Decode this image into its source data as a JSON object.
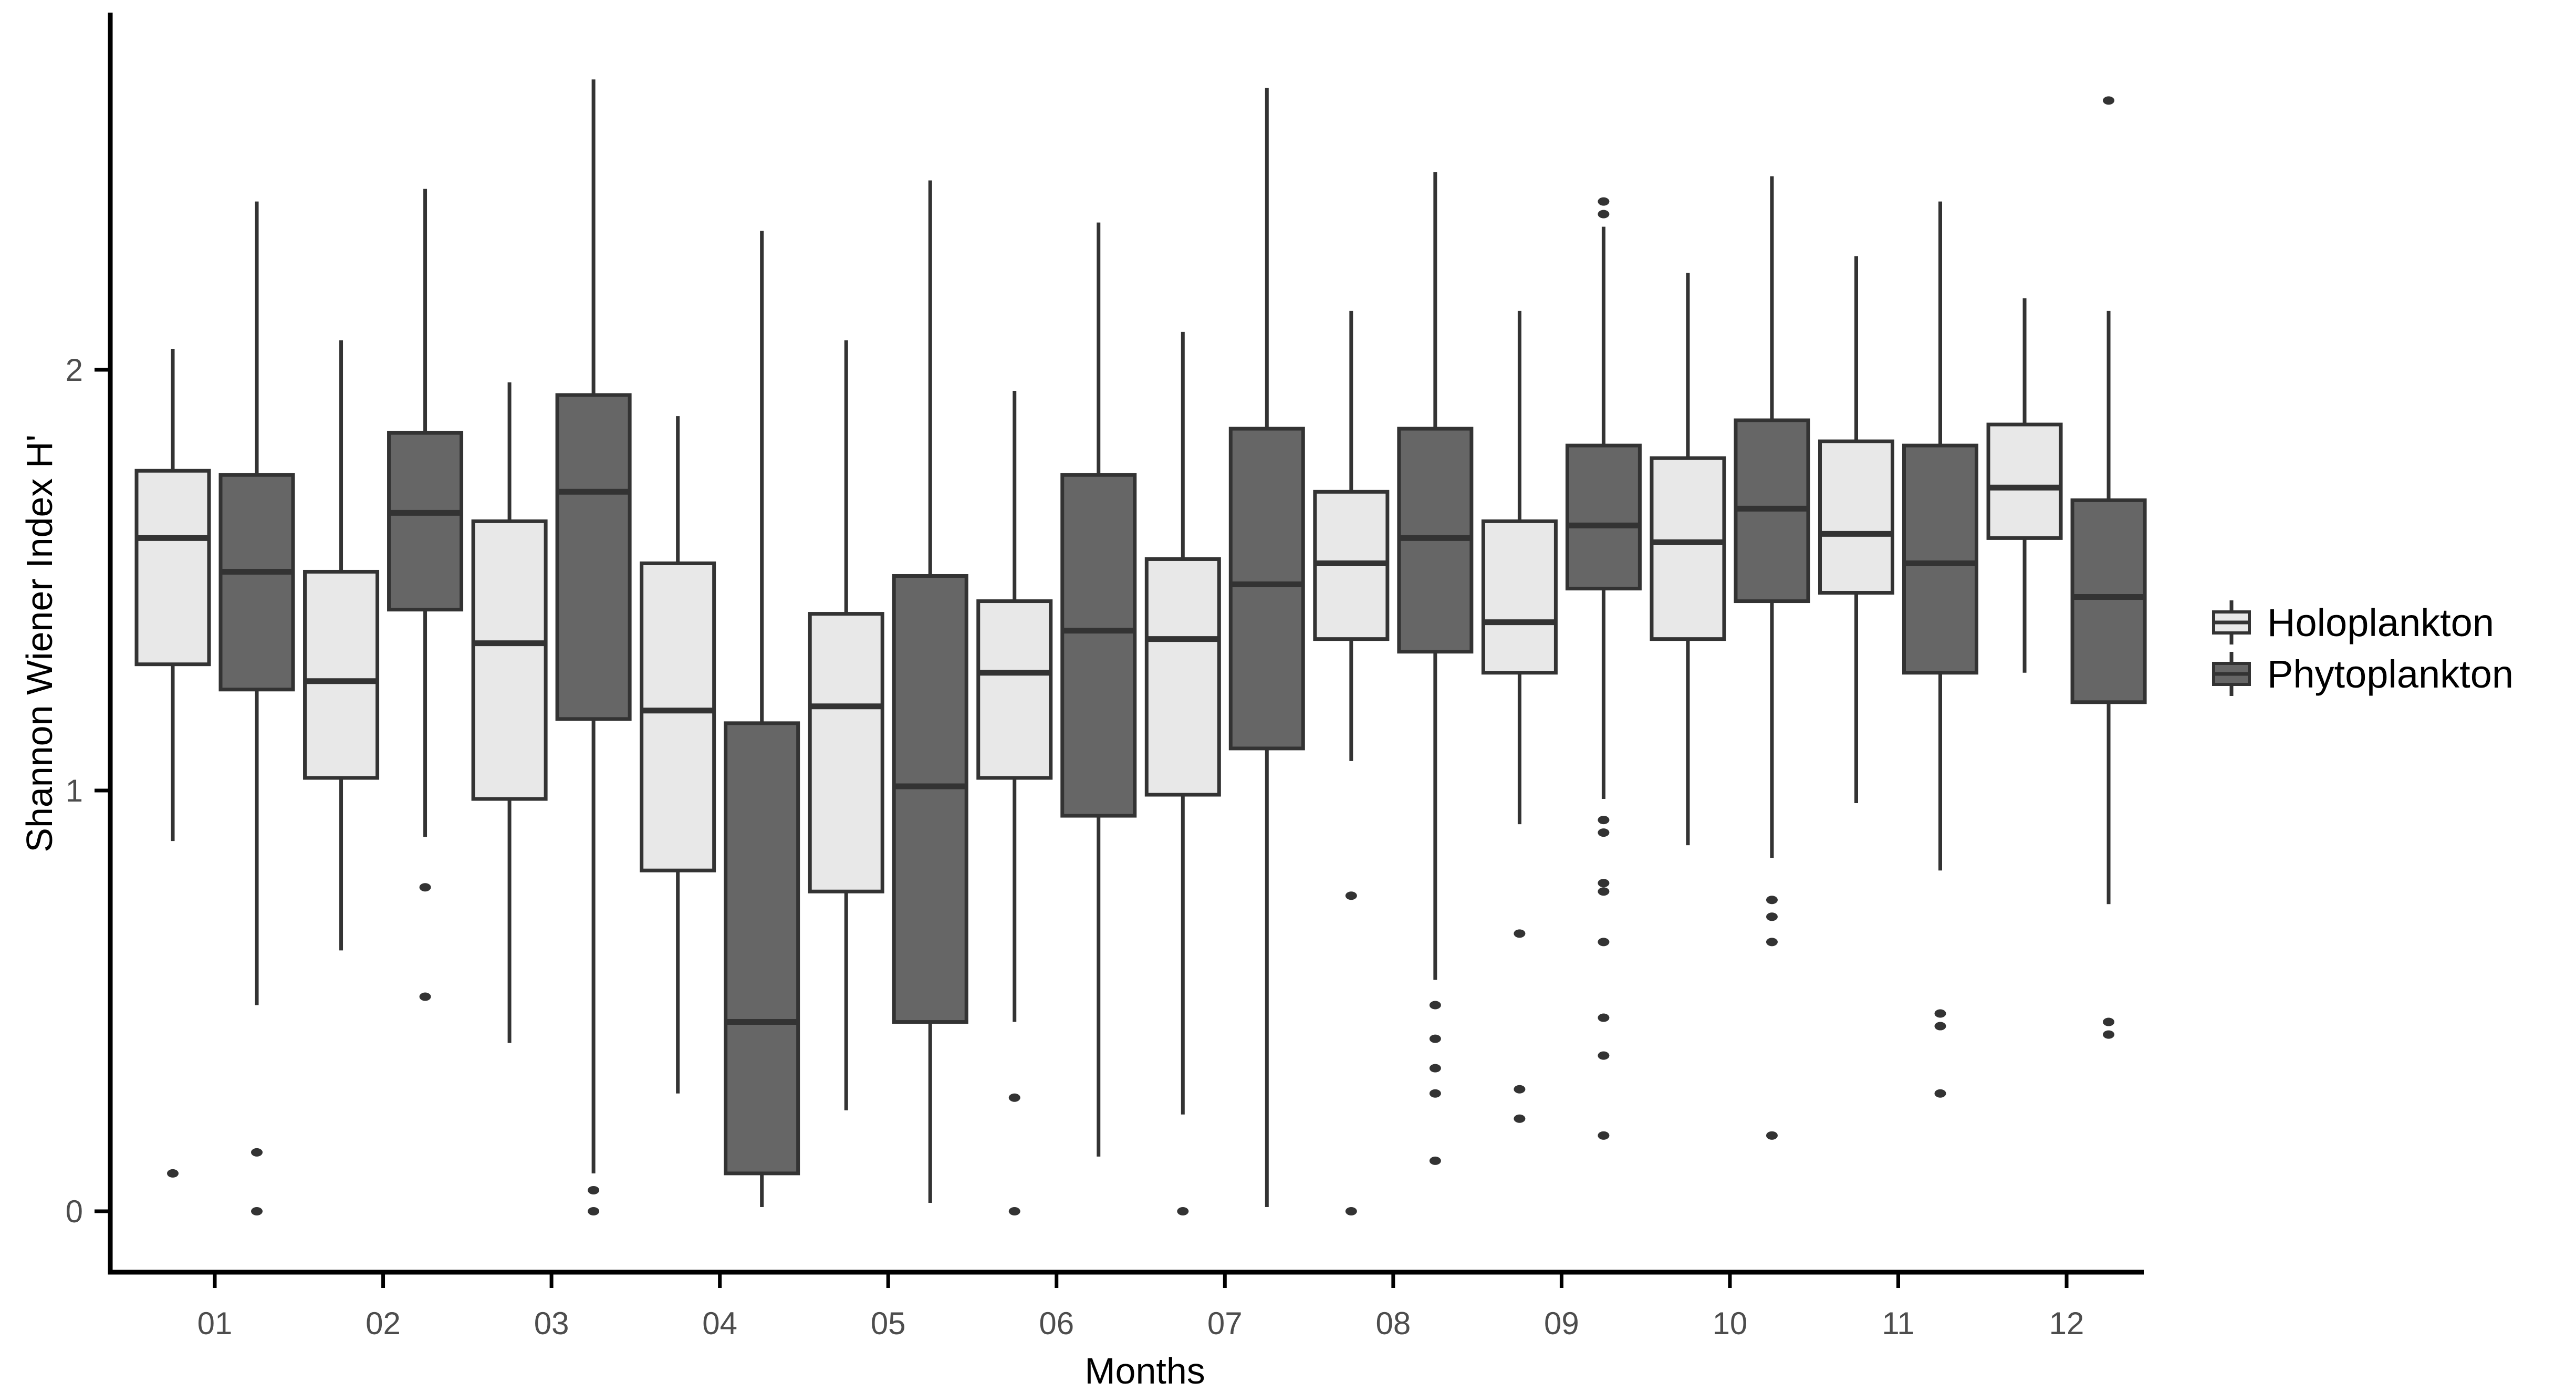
{
  "figure": {
    "background": "#ffffff",
    "axis_color": "#000000",
    "tick_label_color": "#4d4d4d",
    "box_stroke_color": "#333333",
    "outlier_color": "#333333"
  },
  "legend": {
    "position": "right",
    "items": [
      {
        "label": "Holoplankton",
        "fill": "#e8e8e8"
      },
      {
        "label": "Phytoplankton",
        "fill": "#666666"
      }
    ]
  },
  "chart_data": {
    "type": "boxplot",
    "title": "",
    "xlabel": "Months",
    "ylabel": "Shannon Wiener Index H'",
    "ylim": [
      -0.1,
      2.8
    ],
    "y_ticks": [
      0,
      1,
      2
    ],
    "y_tick_labels": [
      "0",
      "1",
      "2"
    ],
    "grid": false,
    "legend_position": "right",
    "categories": [
      "01",
      "02",
      "03",
      "04",
      "05",
      "06",
      "07",
      "08",
      "09",
      "10",
      "11",
      "12"
    ],
    "series": [
      {
        "name": "Holoplankton",
        "fill": "#e8e8e8",
        "boxes": [
          {
            "month": "01",
            "whisker_low": 0.88,
            "q1": 1.3,
            "median": 1.6,
            "q3": 1.76,
            "whisker_high": 2.05,
            "outliers": [
              0.09
            ]
          },
          {
            "month": "02",
            "whisker_low": 0.62,
            "q1": 1.03,
            "median": 1.26,
            "q3": 1.52,
            "whisker_high": 2.07,
            "outliers": []
          },
          {
            "month": "03",
            "whisker_low": 0.4,
            "q1": 0.98,
            "median": 1.35,
            "q3": 1.64,
            "whisker_high": 1.97,
            "outliers": []
          },
          {
            "month": "04",
            "whisker_low": 0.28,
            "q1": 0.81,
            "median": 1.19,
            "q3": 1.54,
            "whisker_high": 1.89,
            "outliers": []
          },
          {
            "month": "05",
            "whisker_low": 0.24,
            "q1": 0.76,
            "median": 1.2,
            "q3": 1.42,
            "whisker_high": 2.07,
            "outliers": []
          },
          {
            "month": "06",
            "whisker_low": 0.45,
            "q1": 1.03,
            "median": 1.28,
            "q3": 1.45,
            "whisker_high": 1.95,
            "outliers": [
              0.27,
              0.0
            ]
          },
          {
            "month": "07",
            "whisker_low": 0.23,
            "q1": 0.99,
            "median": 1.36,
            "q3": 1.55,
            "whisker_high": 2.09,
            "outliers": [
              0.0
            ]
          },
          {
            "month": "08",
            "whisker_low": 1.07,
            "q1": 1.36,
            "median": 1.54,
            "q3": 1.71,
            "whisker_high": 2.14,
            "outliers": [
              0.75,
              0.0
            ]
          },
          {
            "month": "09",
            "whisker_low": 0.92,
            "q1": 1.28,
            "median": 1.4,
            "q3": 1.64,
            "whisker_high": 2.14,
            "outliers": [
              0.66,
              0.29,
              0.22
            ]
          },
          {
            "month": "10",
            "whisker_low": 0.87,
            "q1": 1.36,
            "median": 1.59,
            "q3": 1.79,
            "whisker_high": 2.23,
            "outliers": []
          },
          {
            "month": "11",
            "whisker_low": 0.97,
            "q1": 1.47,
            "median": 1.61,
            "q3": 1.83,
            "whisker_high": 2.27,
            "outliers": []
          },
          {
            "month": "12",
            "whisker_low": 1.28,
            "q1": 1.6,
            "median": 1.72,
            "q3": 1.87,
            "whisker_high": 2.17,
            "outliers": []
          }
        ]
      },
      {
        "name": "Phytoplankton",
        "fill": "#666666",
        "boxes": [
          {
            "month": "01",
            "whisker_low": 0.49,
            "q1": 1.24,
            "median": 1.52,
            "q3": 1.75,
            "whisker_high": 2.4,
            "outliers": [
              0.14,
              0.0
            ]
          },
          {
            "month": "02",
            "whisker_low": 0.89,
            "q1": 1.43,
            "median": 1.66,
            "q3": 1.85,
            "whisker_high": 2.43,
            "outliers": [
              0.77,
              0.51
            ]
          },
          {
            "month": "03",
            "whisker_low": 0.09,
            "q1": 1.17,
            "median": 1.71,
            "q3": 1.94,
            "whisker_high": 2.69,
            "outliers": [
              0.05,
              0.0
            ]
          },
          {
            "month": "04",
            "whisker_low": 0.01,
            "q1": 0.09,
            "median": 0.45,
            "q3": 1.16,
            "whisker_high": 2.33,
            "outliers": []
          },
          {
            "month": "05",
            "whisker_low": 0.02,
            "q1": 0.45,
            "median": 1.01,
            "q3": 1.51,
            "whisker_high": 2.45,
            "outliers": []
          },
          {
            "month": "06",
            "whisker_low": 0.13,
            "q1": 0.94,
            "median": 1.38,
            "q3": 1.75,
            "whisker_high": 2.35,
            "outliers": []
          },
          {
            "month": "07",
            "whisker_low": 0.01,
            "q1": 1.1,
            "median": 1.49,
            "q3": 1.86,
            "whisker_high": 2.67,
            "outliers": []
          },
          {
            "month": "08",
            "whisker_low": 0.55,
            "q1": 1.33,
            "median": 1.6,
            "q3": 1.86,
            "whisker_high": 2.47,
            "outliers": [
              0.49,
              0.41,
              0.34,
              0.28,
              0.12
            ]
          },
          {
            "month": "09",
            "whisker_low": 0.98,
            "q1": 1.48,
            "median": 1.63,
            "q3": 1.82,
            "whisker_high": 2.34,
            "outliers": [
              2.4,
              2.37,
              0.93,
              0.9,
              0.78,
              0.76,
              0.64,
              0.46,
              0.37,
              0.18
            ]
          },
          {
            "month": "10",
            "whisker_low": 0.84,
            "q1": 1.45,
            "median": 1.67,
            "q3": 1.88,
            "whisker_high": 2.46,
            "outliers": [
              0.74,
              0.7,
              0.64,
              0.18
            ]
          },
          {
            "month": "11",
            "whisker_low": 0.81,
            "q1": 1.28,
            "median": 1.54,
            "q3": 1.82,
            "whisker_high": 2.4,
            "outliers": [
              0.47,
              0.44,
              0.28
            ]
          },
          {
            "month": "12",
            "whisker_low": 0.73,
            "q1": 1.21,
            "median": 1.46,
            "q3": 1.69,
            "whisker_high": 2.14,
            "outliers": [
              2.64,
              0.45,
              0.42
            ]
          }
        ]
      }
    ]
  }
}
